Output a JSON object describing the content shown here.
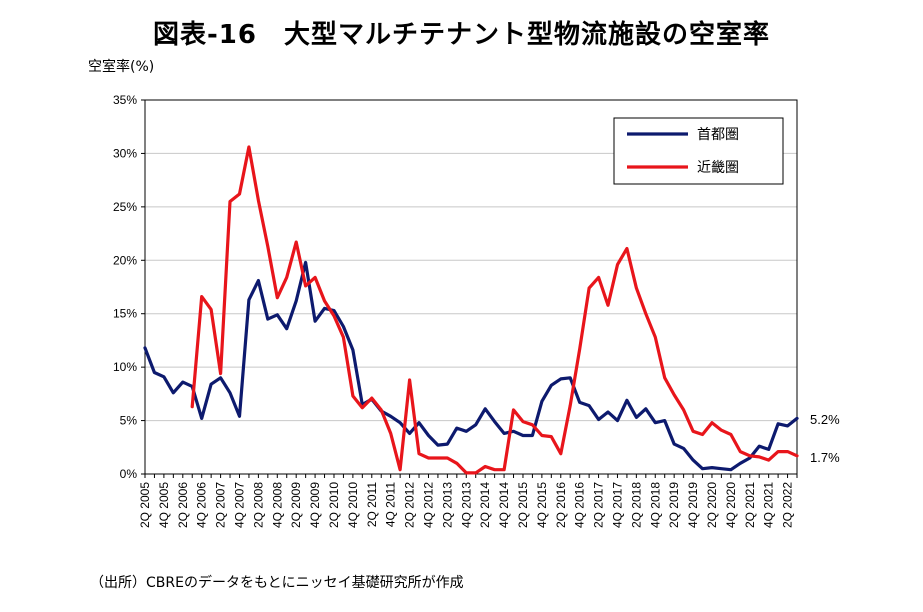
{
  "title": "図表-16　大型マルチテナント型物流施設の空室率",
  "unit_label": "空室率(%)",
  "source": "（出所）CBREのデータをもとにニッセイ基礎研究所が作成",
  "colors": {
    "tokyo": "#0d1a6e",
    "kinki": "#e8151b",
    "grid": "#c8c8c8"
  },
  "chart_data": {
    "type": "line",
    "title": "図表-16　大型マルチテナント型物流施設の空室率",
    "ylabel": "空室率(%)",
    "xlabel": "",
    "ylim": [
      0,
      35
    ],
    "yticks": [
      0,
      5,
      10,
      15,
      20,
      25,
      30,
      35
    ],
    "ytick_labels": [
      "0%",
      "5%",
      "10%",
      "15%",
      "20%",
      "25%",
      "30%",
      "35%"
    ],
    "grid": true,
    "legend_position": "top-right",
    "x_start": "2Q 2005",
    "x_tick_labels": [
      "2Q 2005",
      "4Q 2005",
      "2Q 2006",
      "4Q 2006",
      "2Q 2007",
      "4Q 2007",
      "2Q 2008",
      "4Q 2008",
      "2Q 2009",
      "4Q 2009",
      "2Q 2010",
      "4Q 2010",
      "2Q 2011",
      "4Q 2011",
      "2Q 2012",
      "4Q 2012",
      "2Q 2013",
      "4Q 2013",
      "2Q 2014",
      "4Q 2014",
      "2Q 2015",
      "4Q 2015",
      "2Q 2016",
      "4Q 2016",
      "2Q 2017",
      "4Q 2017",
      "2Q 2018",
      "4Q 2018",
      "2Q 2019",
      "4Q 2019",
      "2Q 2020",
      "4Q 2020",
      "2Q 2021",
      "4Q 2021",
      "2Q 2022"
    ],
    "end_labels": [
      "5.2%",
      "1.7%"
    ],
    "series": [
      {
        "name": "首都圏",
        "color": "#0d1a6e",
        "start_index": 0,
        "values": [
          11.8,
          9.5,
          9.1,
          7.6,
          8.6,
          8.2,
          5.2,
          8.4,
          9.0,
          7.6,
          5.4,
          16.3,
          18.1,
          14.5,
          14.9,
          13.6,
          16.2,
          19.8,
          14.3,
          15.5,
          15.3,
          13.8,
          11.6,
          6.5,
          7.0,
          5.9,
          5.4,
          4.8,
          3.8,
          4.8,
          3.6,
          2.7,
          2.8,
          4.3,
          4.0,
          4.6,
          6.1,
          4.9,
          3.8,
          4.0,
          3.6,
          3.6,
          6.8,
          8.3,
          8.9,
          9.0,
          6.7,
          6.4,
          5.1,
          5.8,
          5.0,
          6.9,
          5.3,
          6.1,
          4.8,
          5.0,
          2.8,
          2.4,
          1.3,
          0.5,
          0.6,
          0.5,
          0.4,
          1.0,
          1.5,
          2.6,
          2.3,
          4.7,
          4.5,
          5.2
        ]
      },
      {
        "name": "近畿圏",
        "color": "#e8151b",
        "start_index": 5,
        "values": [
          6.3,
          16.6,
          15.4,
          9.4,
          25.5,
          26.2,
          30.6,
          25.6,
          21.3,
          16.5,
          18.4,
          21.7,
          17.6,
          18.4,
          16.2,
          14.8,
          12.8,
          7.3,
          6.2,
          7.1,
          6.0,
          3.8,
          0.4,
          8.8,
          1.9,
          1.5,
          1.5,
          1.5,
          1.0,
          0.1,
          0.1,
          0.7,
          0.4,
          0.4,
          6.0,
          4.9,
          4.6,
          3.6,
          3.5,
          1.9,
          6.4,
          11.7,
          17.4,
          18.4,
          15.8,
          19.6,
          21.1,
          17.4,
          15.0,
          12.8,
          9.0,
          7.4,
          6.0,
          4.0,
          3.7,
          4.8,
          4.1,
          3.7,
          2.1,
          1.7,
          1.6,
          1.3,
          2.1,
          2.1,
          1.7
        ]
      }
    ]
  }
}
